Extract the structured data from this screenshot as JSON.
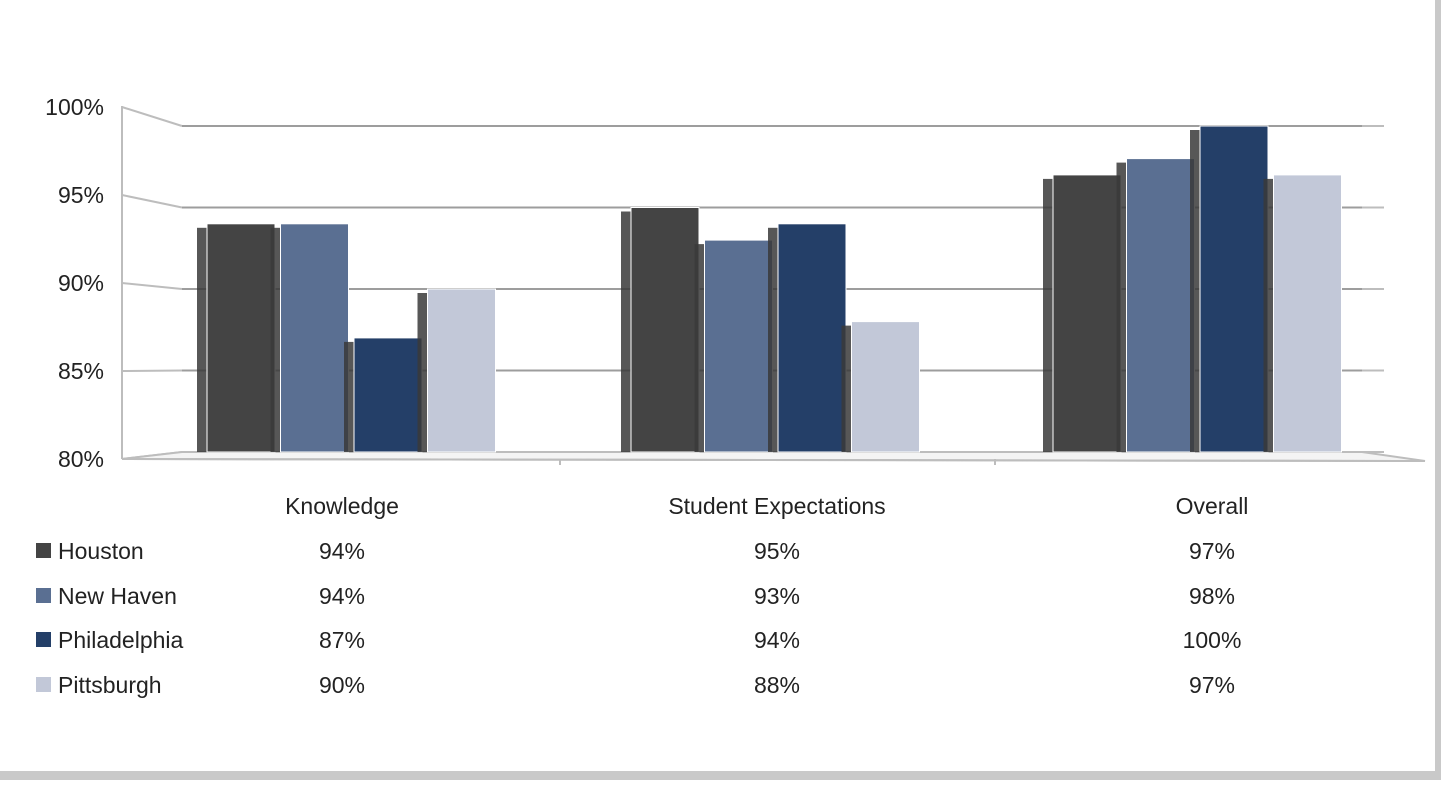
{
  "chart_data": {
    "type": "bar",
    "categories": [
      "Knowledge",
      "Student Expectations",
      "Overall"
    ],
    "series": [
      {
        "name": "Houston",
        "values": [
          94,
          95,
          97
        ],
        "color": "#444444",
        "table": [
          "94%",
          "95%",
          "97%"
        ]
      },
      {
        "name": "New Haven",
        "values": [
          94,
          93,
          98
        ],
        "color": "#5a6f92",
        "table": [
          "94%",
          "93%",
          "98%"
        ]
      },
      {
        "name": "Philadelphia",
        "values": [
          87,
          94,
          100
        ],
        "color": "#243f68",
        "table": [
          "87%",
          "94%",
          "100%"
        ]
      },
      {
        "name": "Pittsburgh",
        "values": [
          90,
          88,
          97
        ],
        "color": "#c2c8d8",
        "table": [
          "90%",
          "88%",
          "97%"
        ]
      }
    ],
    "y_ticks": [
      "100%",
      "95%",
      "90%",
      "85%",
      "80%"
    ],
    "ylim": [
      80,
      100
    ],
    "grid": true,
    "legend": "data table below chart"
  }
}
